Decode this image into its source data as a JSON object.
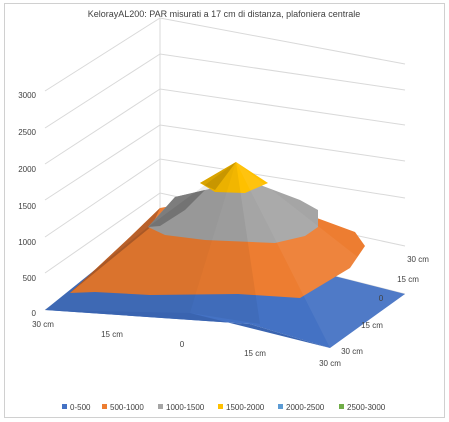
{
  "chart_data": {
    "type": "surface-3d",
    "title": "KelorayAL200: PAR misurati a 17 cm di distanza, plafoniera centrale",
    "z_ticks": [
      "0",
      "500",
      "1000",
      "1500",
      "2000",
      "2500",
      "3000"
    ],
    "z_range": [
      0,
      3000
    ],
    "x_ticks": [
      "30 cm",
      "15 cm",
      "0",
      "15 cm",
      "30 cm"
    ],
    "y_ticks": [
      "30 cm",
      "15 cm",
      "0",
      "15 cm",
      "30 cm"
    ],
    "grid": true,
    "legend_position": "bottom",
    "legend": [
      {
        "label": "0-500",
        "color": "#4472c4"
      },
      {
        "label": "500-1000",
        "color": "#ed7d31"
      },
      {
        "label": "1000-1500",
        "color": "#a5a5a5"
      },
      {
        "label": "1500-2000",
        "color": "#ffc000"
      },
      {
        "label": "2000-2500",
        "color": "#5b9bd5"
      },
      {
        "label": "2500-3000",
        "color": "#70ad47"
      }
    ],
    "surface_bands": [
      {
        "range": "0-500",
        "color": "#4472c4"
      },
      {
        "range": "500-1000",
        "color": "#ed7d31"
      },
      {
        "range": "1000-1500",
        "color": "#a5a5a5"
      },
      {
        "range": "1500-2000",
        "color": "#ffc000"
      }
    ],
    "peak_value": 2000
  }
}
